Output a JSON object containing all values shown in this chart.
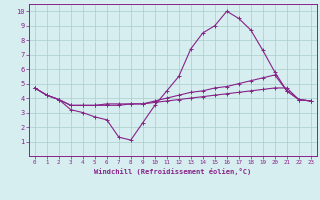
{
  "background_color": "#d6eef0",
  "grid_color": "#aacccc",
  "line_color": "#882288",
  "xlabel": "Windchill (Refroidissement éolien,°C)",
  "xlim": [
    -0.5,
    23.5
  ],
  "ylim": [
    0,
    10.5
  ],
  "xticks": [
    0,
    1,
    2,
    3,
    4,
    5,
    6,
    7,
    8,
    9,
    10,
    11,
    12,
    13,
    14,
    15,
    16,
    17,
    18,
    19,
    20,
    21,
    22,
    23
  ],
  "yticks": [
    1,
    2,
    3,
    4,
    5,
    6,
    7,
    8,
    9,
    10
  ],
  "series": [
    {
      "x": [
        0,
        1,
        2,
        3,
        4,
        5,
        6,
        7,
        8,
        9,
        10,
        11,
        12,
        13,
        14,
        15,
        16,
        17,
        18,
        19,
        20,
        21,
        22,
        23
      ],
      "y": [
        4.7,
        4.2,
        3.9,
        3.2,
        3.0,
        2.7,
        2.5,
        1.3,
        1.1,
        2.3,
        3.5,
        4.5,
        5.5,
        7.4,
        8.5,
        9.0,
        10.0,
        9.5,
        8.7,
        7.3,
        5.8,
        4.5,
        3.9,
        3.8
      ]
    },
    {
      "x": [
        0,
        1,
        2,
        3,
        4,
        5,
        6,
        7,
        8,
        9,
        10,
        11,
        12,
        13,
        14,
        15,
        16,
        17,
        18,
        19,
        20,
        21,
        22,
        23
      ],
      "y": [
        4.7,
        4.2,
        3.9,
        3.5,
        3.5,
        3.5,
        3.5,
        3.5,
        3.6,
        3.6,
        3.7,
        3.8,
        3.9,
        4.0,
        4.1,
        4.2,
        4.3,
        4.4,
        4.5,
        4.6,
        4.7,
        4.7,
        3.9,
        3.8
      ]
    },
    {
      "x": [
        0,
        1,
        2,
        3,
        4,
        5,
        6,
        7,
        8,
        9,
        10,
        11,
        12,
        13,
        14,
        15,
        16,
        17,
        18,
        19,
        20,
        21,
        22,
        23
      ],
      "y": [
        4.7,
        4.2,
        3.9,
        3.5,
        3.5,
        3.5,
        3.6,
        3.6,
        3.6,
        3.6,
        3.8,
        4.0,
        4.2,
        4.4,
        4.5,
        4.7,
        4.8,
        5.0,
        5.2,
        5.4,
        5.6,
        4.5,
        3.9,
        3.8
      ]
    }
  ]
}
